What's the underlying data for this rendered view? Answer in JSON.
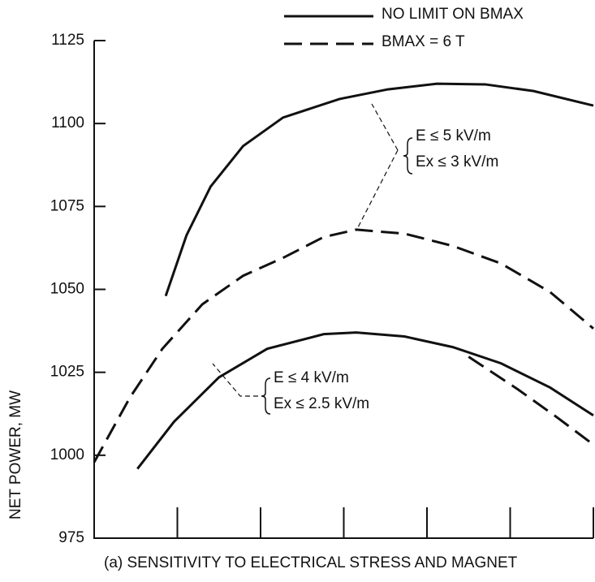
{
  "chart_data": {
    "type": "line",
    "y_label": "NET POWER, MW",
    "caption": "(a) SENSITIVITY TO ELECTRICAL STRESS AND MAGNET",
    "ylim": [
      975,
      1125
    ],
    "yticks": [
      975,
      1000,
      1025,
      1050,
      1075,
      1100,
      1125
    ],
    "xlim": [
      0,
      6
    ],
    "xticks": [
      0,
      1,
      2,
      3,
      4,
      5,
      6
    ],
    "series": [
      {
        "name": "NO LIMIT ON BMAX",
        "color": "#111111",
        "dash": false,
        "x": [
          0.86,
          1.11,
          1.4,
          1.79,
          2.27,
          2.95,
          3.53,
          4.12,
          4.7,
          5.28,
          6.0
        ],
        "values": [
          1048.0,
          1066.3,
          1081.0,
          1093.2,
          1101.8,
          1107.4,
          1110.3,
          1112.0,
          1111.8,
          1109.8,
          1105.4
        ]
      },
      {
        "name": "BMAX = 6 T",
        "color": "#111111",
        "dash": true,
        "x": [
          0,
          0.43,
          0.82,
          1.3,
          1.79,
          2.27,
          2.76,
          3.15,
          3.73,
          4.31,
          4.89,
          5.48,
          6.0
        ],
        "values": [
          997.9,
          1017.4,
          1032.1,
          1045.5,
          1054.1,
          1059.5,
          1065.8,
          1068.0,
          1066.8,
          1063.1,
          1057.8,
          1049.2,
          1038.2
        ]
      },
      {
        "color": "#111111",
        "dash": false,
        "x": [
          0.52,
          0.96,
          1.5,
          2.08,
          2.76,
          3.15,
          3.73,
          4.31,
          4.89,
          5.48,
          6.0
        ],
        "values": [
          995.9,
          1010.1,
          1023.5,
          1032.1,
          1036.5,
          1037.0,
          1035.8,
          1032.6,
          1027.7,
          1020.4,
          1012.0
        ]
      },
      {
        "color": "#111111",
        "dash": true,
        "x": [
          4.5,
          5.09,
          5.57,
          6.0
        ],
        "values": [
          1029.7,
          1019.9,
          1011.3,
          1003.2
        ]
      }
    ],
    "annotations": [
      "E ≤ 5 kV/m",
      "Ex ≤ 3 kV/m",
      "E ≤ 4 kV/m",
      "Ex ≤ 2.5 kV/m"
    ]
  }
}
